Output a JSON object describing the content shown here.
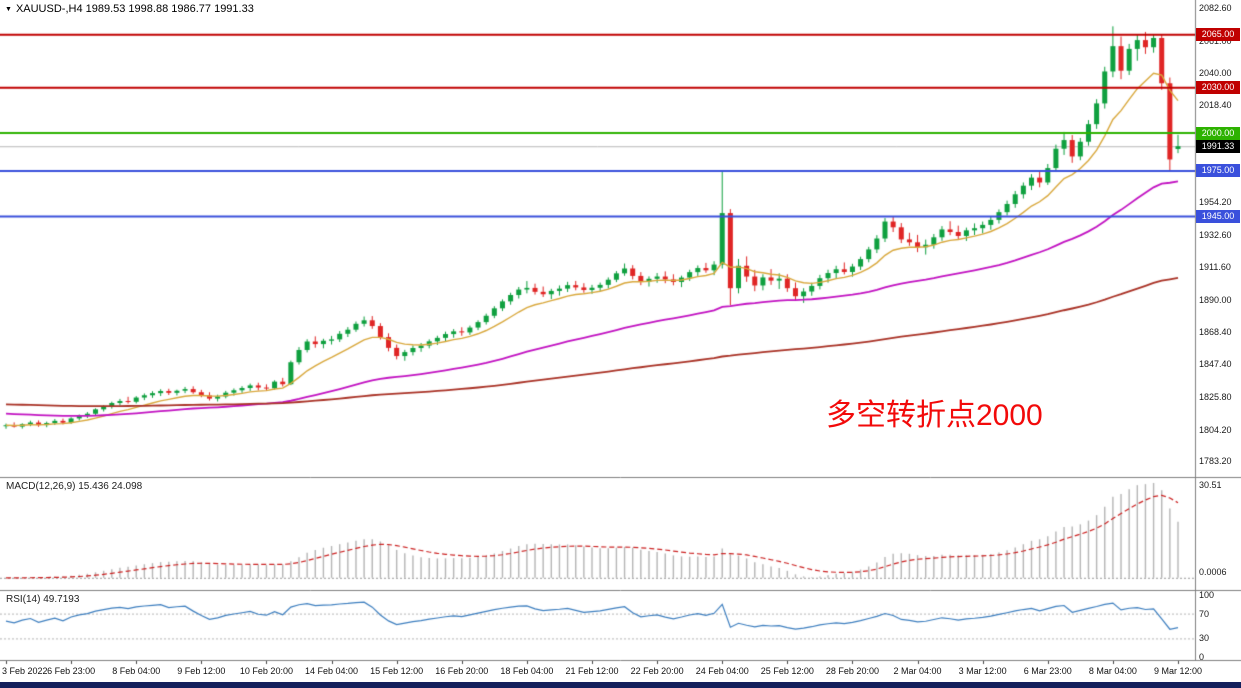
{
  "header": {
    "dropdown_icon": "▼",
    "symbol_line": "XAUUSD-,H4  1989.53 1998.88 1986.77 1991.33"
  },
  "annotation": {
    "text": "多空转折点2000",
    "color": "#F20A0A"
  },
  "colors": {
    "up": "#0FA03F",
    "down": "#E02525",
    "macd_hist": "#B5B5B5",
    "macd_signal": "#CC2222",
    "rsi": "#3C7EBF",
    "bid_line": "#B8B8B8",
    "taskbar": "#141F5C"
  },
  "price_axis": {
    "ticks": [
      {
        "label": "2082.60",
        "price": 2082.6
      },
      {
        "label": "2061.00",
        "price": 2061.0
      },
      {
        "label": "2040.00",
        "price": 2040.0
      },
      {
        "label": "2018.40",
        "price": 2018.4
      },
      {
        "label": "1954.20",
        "price": 1954.2
      },
      {
        "label": "1932.60",
        "price": 1932.6
      },
      {
        "label": "1911.60",
        "price": 1911.6
      },
      {
        "label": "1890.00",
        "price": 1890.0
      },
      {
        "label": "1868.40",
        "price": 1868.4
      },
      {
        "label": "1847.40",
        "price": 1847.4
      },
      {
        "label": "1825.80",
        "price": 1825.8
      },
      {
        "label": "1804.20",
        "price": 1804.2
      },
      {
        "label": "1783.20",
        "price": 1783.2
      }
    ]
  },
  "chart_data": {
    "type": "candlestick",
    "title": "XAUUSD-,H4",
    "symbol": "XAUUSD-",
    "timeframe": "H4",
    "current_ohlc": {
      "open": 1989.53,
      "high": 1998.88,
      "low": 1986.77,
      "close": 1991.33
    },
    "ylim": [
      1780.2,
      2082.6
    ],
    "candles_per_label": 8,
    "x_labels": [
      "3 Feb 2022",
      "6 Feb 23:00",
      "8 Feb 04:00",
      "9 Feb 12:00",
      "10 Feb 20:00",
      "14 Feb 04:00",
      "15 Feb 12:00",
      "16 Feb 20:00",
      "18 Feb 04:00",
      "21 Feb 12:00",
      "22 Feb 20:00",
      "24 Feb 04:00",
      "25 Feb 12:00",
      "28 Feb 20:00",
      "2 Mar 04:00",
      "3 Mar 12:00",
      "6 Mar 23:00",
      "8 Mar 04:00",
      "9 Mar 12:00"
    ],
    "levels": [
      {
        "label": "2065.00",
        "price": 2065.0,
        "color": "#C00000",
        "style": "solid"
      },
      {
        "label": "2030.00",
        "price": 2030.0,
        "color": "#C00000",
        "style": "solid"
      },
      {
        "label": "2000.00",
        "price": 2000.0,
        "color": "#2DB200",
        "style": "solid"
      },
      {
        "label": "1991.33",
        "price": 1991.33,
        "color": "#000000",
        "line_color": "#B8B8B8",
        "style": "bid"
      },
      {
        "label": "1975.00",
        "price": 1975.0,
        "color": "#3A50DC",
        "style": "solid"
      },
      {
        "label": "1945.00",
        "price": 1945.0,
        "color": "#3A50DC",
        "style": "solid"
      }
    ],
    "moving_averages": [
      {
        "name": "ma-fast",
        "period": 10,
        "seed_offset": 0,
        "color": "#D9A83C",
        "width": 1.4
      },
      {
        "name": "ma-medium",
        "period": 55,
        "seed_offset": 8,
        "color": "#C213C2",
        "width": 1.8
      },
      {
        "name": "ma-slow",
        "period": 175,
        "seed_offset": 14,
        "color": "#A93226",
        "width": 1.8
      }
    ],
    "indicators": {
      "macd": {
        "label": "MACD(12,26,9) 15.436 24.098",
        "fast": 12,
        "slow": 26,
        "signal": 9,
        "scale_max_label": "30.51",
        "zero_label": "0.0006"
      },
      "rsi": {
        "label": "RSI(14) 49.7193",
        "period": 14,
        "scale_labels": [
          {
            "label": "100",
            "value": 100
          },
          {
            "label": "70",
            "value": 70
          },
          {
            "label": "30",
            "value": 30
          },
          {
            "label": "0",
            "value": 0
          }
        ],
        "levels": [
          70,
          30
        ]
      }
    },
    "ohlc": [
      [
        1806.5,
        1808.2,
        1804.8,
        1807.1
      ],
      [
        1807.1,
        1809.0,
        1805.6,
        1806.2
      ],
      [
        1806.2,
        1808.4,
        1804.9,
        1807.8
      ],
      [
        1807.8,
        1810.1,
        1806.5,
        1808.9
      ],
      [
        1808.9,
        1810.3,
        1806.1,
        1807.2
      ],
      [
        1807.2,
        1809.5,
        1805.8,
        1808.6
      ],
      [
        1808.6,
        1811.2,
        1807.3,
        1810.0
      ],
      [
        1810.0,
        1811.5,
        1807.7,
        1808.8
      ],
      [
        1808.8,
        1812.4,
        1808.0,
        1811.6
      ],
      [
        1811.6,
        1814.2,
        1810.3,
        1813.5
      ],
      [
        1813.5,
        1815.8,
        1811.9,
        1814.7
      ],
      [
        1814.7,
        1818.3,
        1813.8,
        1817.6
      ],
      [
        1817.6,
        1820.4,
        1816.2,
        1819.5
      ],
      [
        1819.5,
        1822.7,
        1818.1,
        1821.8
      ],
      [
        1821.8,
        1824.5,
        1820.2,
        1823.1
      ],
      [
        1823.1,
        1825.9,
        1821.4,
        1822.6
      ],
      [
        1822.6,
        1826.3,
        1821.5,
        1825.4
      ],
      [
        1825.4,
        1828.1,
        1823.7,
        1826.9
      ],
      [
        1826.9,
        1829.6,
        1825.2,
        1828.3
      ],
      [
        1828.3,
        1830.9,
        1826.4,
        1829.7
      ],
      [
        1829.7,
        1831.2,
        1827.1,
        1828.5
      ],
      [
        1828.5,
        1830.6,
        1826.8,
        1829.9
      ],
      [
        1829.9,
        1832.4,
        1828.3,
        1831.0
      ],
      [
        1831.0,
        1832.8,
        1827.9,
        1828.9
      ],
      [
        1828.9,
        1830.5,
        1825.6,
        1826.8
      ],
      [
        1826.8,
        1828.9,
        1823.4,
        1824.7
      ],
      [
        1824.7,
        1827.3,
        1822.8,
        1826.1
      ],
      [
        1826.1,
        1829.8,
        1824.9,
        1828.6
      ],
      [
        1828.6,
        1831.4,
        1826.7,
        1830.2
      ],
      [
        1830.2,
        1832.9,
        1828.5,
        1831.7
      ],
      [
        1831.7,
        1834.6,
        1829.8,
        1833.4
      ],
      [
        1833.4,
        1835.2,
        1830.1,
        1832.0
      ],
      [
        1832.0,
        1834.1,
        1829.8,
        1831.5
      ],
      [
        1831.5,
        1836.8,
        1830.6,
        1835.9
      ],
      [
        1835.9,
        1838.4,
        1832.7,
        1834.2
      ],
      [
        1834.2,
        1849.8,
        1833.6,
        1848.7
      ],
      [
        1848.7,
        1858.7,
        1847.2,
        1856.8
      ],
      [
        1856.8,
        1863.9,
        1855.2,
        1862.4
      ],
      [
        1862.4,
        1865.8,
        1858.3,
        1860.7
      ],
      [
        1860.7,
        1864.2,
        1857.9,
        1862.9
      ],
      [
        1862.9,
        1866.1,
        1860.4,
        1863.8
      ],
      [
        1863.8,
        1869.3,
        1862.1,
        1867.5
      ],
      [
        1867.5,
        1871.9,
        1865.4,
        1870.2
      ],
      [
        1870.2,
        1875.6,
        1868.8,
        1874.1
      ],
      [
        1874.1,
        1878.9,
        1872.3,
        1876.4
      ],
      [
        1876.4,
        1879.2,
        1870.8,
        1872.6
      ],
      [
        1872.6,
        1874.5,
        1863.7,
        1865.3
      ],
      [
        1865.3,
        1867.8,
        1855.9,
        1858.2
      ],
      [
        1858.2,
        1860.4,
        1850.6,
        1852.8
      ],
      [
        1852.8,
        1856.9,
        1849.7,
        1855.4
      ],
      [
        1855.4,
        1859.8,
        1853.2,
        1858.1
      ],
      [
        1858.1,
        1861.4,
        1855.6,
        1859.7
      ],
      [
        1859.7,
        1863.8,
        1857.9,
        1862.5
      ],
      [
        1862.5,
        1866.2,
        1860.1,
        1864.8
      ],
      [
        1864.8,
        1868.9,
        1862.7,
        1867.3
      ],
      [
        1867.3,
        1870.6,
        1864.9,
        1869.1
      ],
      [
        1869.1,
        1871.8,
        1866.2,
        1868.4
      ],
      [
        1868.4,
        1872.9,
        1866.8,
        1871.6
      ],
      [
        1871.6,
        1876.4,
        1869.9,
        1875.2
      ],
      [
        1875.2,
        1880.8,
        1873.6,
        1879.4
      ],
      [
        1879.4,
        1885.7,
        1877.8,
        1884.3
      ],
      [
        1884.3,
        1890.2,
        1882.5,
        1888.9
      ],
      [
        1888.9,
        1894.6,
        1886.7,
        1893.1
      ],
      [
        1893.1,
        1898.4,
        1890.8,
        1896.7
      ],
      [
        1896.7,
        1902.3,
        1894.2,
        1897.8
      ],
      [
        1897.8,
        1900.6,
        1893.4,
        1895.2
      ],
      [
        1895.2,
        1898.7,
        1891.8,
        1893.6
      ],
      [
        1893.6,
        1897.2,
        1890.4,
        1895.8
      ],
      [
        1895.8,
        1899.4,
        1892.7,
        1897.3
      ],
      [
        1897.3,
        1901.8,
        1895.1,
        1899.6
      ],
      [
        1899.6,
        1902.4,
        1896.2,
        1898.1
      ],
      [
        1898.1,
        1900.9,
        1894.6,
        1896.4
      ],
      [
        1896.4,
        1899.8,
        1893.9,
        1897.9
      ],
      [
        1897.9,
        1901.3,
        1895.6,
        1899.8
      ],
      [
        1899.8,
        1904.7,
        1897.4,
        1903.2
      ],
      [
        1903.2,
        1908.9,
        1901.6,
        1907.4
      ],
      [
        1907.4,
        1913.9,
        1905.8,
        1910.6
      ],
      [
        1910.6,
        1912.8,
        1903.4,
        1905.7
      ],
      [
        1905.7,
        1908.2,
        1899.6,
        1901.9
      ],
      [
        1901.9,
        1905.4,
        1898.7,
        1903.8
      ],
      [
        1903.8,
        1907.6,
        1901.2,
        1905.3
      ],
      [
        1905.3,
        1908.7,
        1900.9,
        1903.4
      ],
      [
        1903.4,
        1906.8,
        1899.5,
        1901.7
      ],
      [
        1901.7,
        1905.9,
        1898.3,
        1904.6
      ],
      [
        1904.6,
        1909.8,
        1902.4,
        1908.2
      ],
      [
        1908.2,
        1912.6,
        1905.7,
        1910.9
      ],
      [
        1910.9,
        1914.3,
        1907.8,
        1909.4
      ],
      [
        1909.4,
        1915.4,
        1906.2,
        1913.2
      ],
      [
        1913.2,
        1974.3,
        1910.6,
        1947.2
      ],
      [
        1947.2,
        1949.8,
        1886.4,
        1897.6
      ],
      [
        1897.6,
        1916.9,
        1894.2,
        1912.4
      ],
      [
        1912.4,
        1918.6,
        1901.8,
        1905.3
      ],
      [
        1905.3,
        1909.7,
        1895.6,
        1899.4
      ],
      [
        1899.4,
        1906.8,
        1896.2,
        1904.7
      ],
      [
        1904.7,
        1910.2,
        1899.8,
        1902.6
      ],
      [
        1902.6,
        1907.4,
        1897.1,
        1903.9
      ],
      [
        1903.9,
        1906.8,
        1895.2,
        1897.6
      ],
      [
        1897.6,
        1901.4,
        1889.8,
        1892.3
      ],
      [
        1892.3,
        1897.6,
        1887.9,
        1895.4
      ],
      [
        1895.4,
        1901.2,
        1892.6,
        1899.1
      ],
      [
        1899.1,
        1906.4,
        1896.8,
        1904.2
      ],
      [
        1904.2,
        1909.8,
        1901.3,
        1907.6
      ],
      [
        1907.6,
        1912.4,
        1903.9,
        1910.1
      ],
      [
        1910.1,
        1914.6,
        1906.7,
        1908.3
      ],
      [
        1908.3,
        1913.7,
        1905.2,
        1911.9
      ],
      [
        1911.9,
        1918.4,
        1909.6,
        1916.8
      ],
      [
        1916.8,
        1924.9,
        1914.7,
        1923.2
      ],
      [
        1923.2,
        1932.6,
        1920.8,
        1930.4
      ],
      [
        1930.4,
        1943.9,
        1928.1,
        1941.6
      ],
      [
        1941.6,
        1945.2,
        1934.7,
        1937.8
      ],
      [
        1937.8,
        1940.6,
        1927.4,
        1929.8
      ],
      [
        1929.8,
        1934.2,
        1925.6,
        1927.9
      ],
      [
        1927.9,
        1932.8,
        1921.4,
        1924.6
      ],
      [
        1924.6,
        1929.7,
        1919.8,
        1926.3
      ],
      [
        1926.3,
        1933.4,
        1923.7,
        1931.2
      ],
      [
        1931.2,
        1938.6,
        1928.9,
        1936.4
      ],
      [
        1936.4,
        1941.8,
        1932.6,
        1934.7
      ],
      [
        1934.7,
        1938.9,
        1929.4,
        1932.1
      ],
      [
        1932.1,
        1937.6,
        1928.8,
        1935.8
      ],
      [
        1935.8,
        1940.4,
        1932.7,
        1937.2
      ],
      [
        1937.2,
        1941.6,
        1933.8,
        1939.4
      ],
      [
        1939.4,
        1944.8,
        1936.2,
        1942.7
      ],
      [
        1942.7,
        1949.6,
        1940.3,
        1947.8
      ],
      [
        1947.8,
        1955.4,
        1945.6,
        1953.2
      ],
      [
        1953.2,
        1961.8,
        1950.7,
        1959.6
      ],
      [
        1959.6,
        1967.4,
        1956.8,
        1965.3
      ],
      [
        1965.3,
        1972.9,
        1962.4,
        1970.6
      ],
      [
        1970.6,
        1974.8,
        1964.2,
        1967.4
      ],
      [
        1967.4,
        1979.6,
        1965.8,
        1976.9
      ],
      [
        1976.9,
        1992.4,
        1974.3,
        1989.7
      ],
      [
        1989.7,
        2000.8,
        1985.6,
        1995.4
      ],
      [
        1995.4,
        1998.7,
        1980.4,
        1984.6
      ],
      [
        1984.6,
        1996.8,
        1982.1,
        1994.3
      ],
      [
        1994.3,
        2008.6,
        1991.7,
        2005.9
      ],
      [
        2005.9,
        2022.4,
        2002.8,
        2019.6
      ],
      [
        2019.6,
        2043.8,
        2016.2,
        2040.7
      ],
      [
        2040.7,
        2070.5,
        2036.9,
        2057.4
      ],
      [
        2057.4,
        2063.8,
        2035.6,
        2041.2
      ],
      [
        2041.2,
        2058.9,
        2038.4,
        2055.6
      ],
      [
        2055.6,
        2065.2,
        2047.8,
        2061.4
      ],
      [
        2061.4,
        2066.8,
        2052.3,
        2056.7
      ],
      [
        2056.7,
        2064.9,
        2053.1,
        2062.8
      ],
      [
        2062.8,
        2065.4,
        2028.6,
        2032.9
      ],
      [
        2032.9,
        2036.7,
        1975.4,
        1982.6
      ],
      [
        1989.53,
        1998.88,
        1986.77,
        1991.33
      ]
    ]
  }
}
